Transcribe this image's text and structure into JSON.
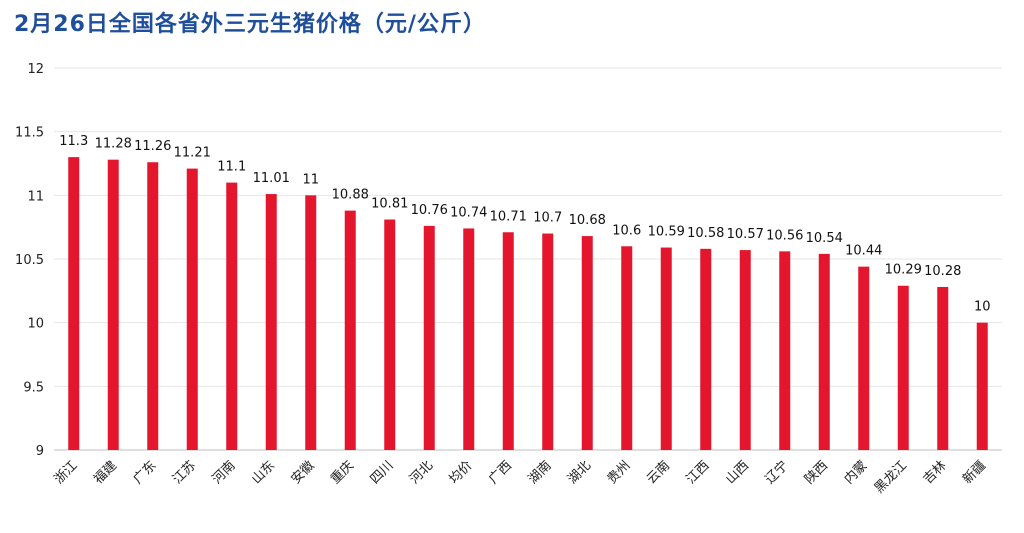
{
  "title": "2月26日全国各省外三元生猪价格（元/公斤）",
  "chart_data": {
    "type": "bar",
    "title": "2月26日全国各省外三元生猪价格（元/公斤）",
    "categories": [
      "浙江",
      "福建",
      "广东",
      "江苏",
      "河南",
      "山东",
      "安徽",
      "重庆",
      "四川",
      "河北",
      "均价",
      "广西",
      "湖南",
      "湖北",
      "贵州",
      "云南",
      "江西",
      "山西",
      "辽宁",
      "陕西",
      "内蒙",
      "黑龙江",
      "吉林",
      "新疆"
    ],
    "values": [
      11.3,
      11.28,
      11.26,
      11.21,
      11.1,
      11.01,
      11,
      10.88,
      10.81,
      10.76,
      10.74,
      10.71,
      10.7,
      10.68,
      10.6,
      10.59,
      10.58,
      10.57,
      10.56,
      10.54,
      10.44,
      10.29,
      10.28,
      10
    ],
    "value_labels": [
      "11.3",
      "11.28",
      "11.26",
      "11.21",
      "11.1",
      "11.01",
      "11",
      "10.88",
      "10.81",
      "10.76",
      "10.74",
      "10.71",
      "10.7",
      "10.68",
      "10.6",
      "10.59",
      "10.58",
      "10.57",
      "10.56",
      "10.54",
      "10.44",
      "10.29",
      "10.28",
      "10"
    ],
    "yticks": [
      "9",
      "9.5",
      "10",
      "10.5",
      "11",
      "11.5",
      "12"
    ],
    "ylim": [
      9,
      12
    ],
    "grid": true,
    "colors": {
      "bar": "#e3162d",
      "title": "#1f4e9a",
      "grid": "#e6e6e6"
    }
  }
}
